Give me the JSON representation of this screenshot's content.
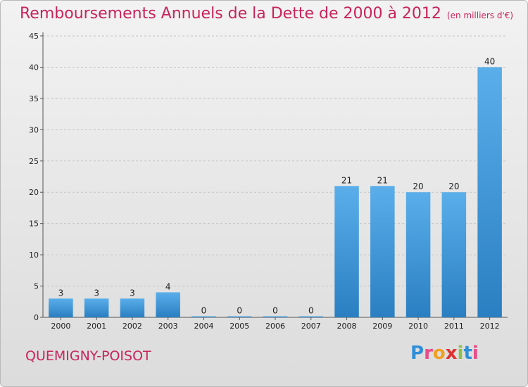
{
  "title": "Remboursements Annuels de la Dette de 2000 à 2012",
  "subtitle": "(en milliers d'€)",
  "commune": "QUEMIGNY-POISOT",
  "logo_text": [
    "P",
    "r",
    "o",
    "x",
    "i",
    "t",
    "i"
  ],
  "chart_data": {
    "type": "bar",
    "categories": [
      "2000",
      "2001",
      "2002",
      "2003",
      "2004",
      "2005",
      "2006",
      "2007",
      "2008",
      "2009",
      "2010",
      "2011",
      "2012"
    ],
    "values": [
      3,
      3,
      3,
      4,
      0,
      0,
      0,
      0,
      21,
      21,
      20,
      20,
      40
    ],
    "data_labels": [
      "3",
      "3",
      "3",
      "4",
      "0",
      "0",
      "0",
      "0",
      "21",
      "21",
      "20",
      "20",
      "40"
    ],
    "ylim": [
      0,
      45
    ],
    "yticks": [
      0,
      5,
      10,
      15,
      20,
      25,
      30,
      35,
      40,
      45
    ],
    "grid": true,
    "bar_color": "#3f95d8",
    "title_color": "#c8245c"
  }
}
